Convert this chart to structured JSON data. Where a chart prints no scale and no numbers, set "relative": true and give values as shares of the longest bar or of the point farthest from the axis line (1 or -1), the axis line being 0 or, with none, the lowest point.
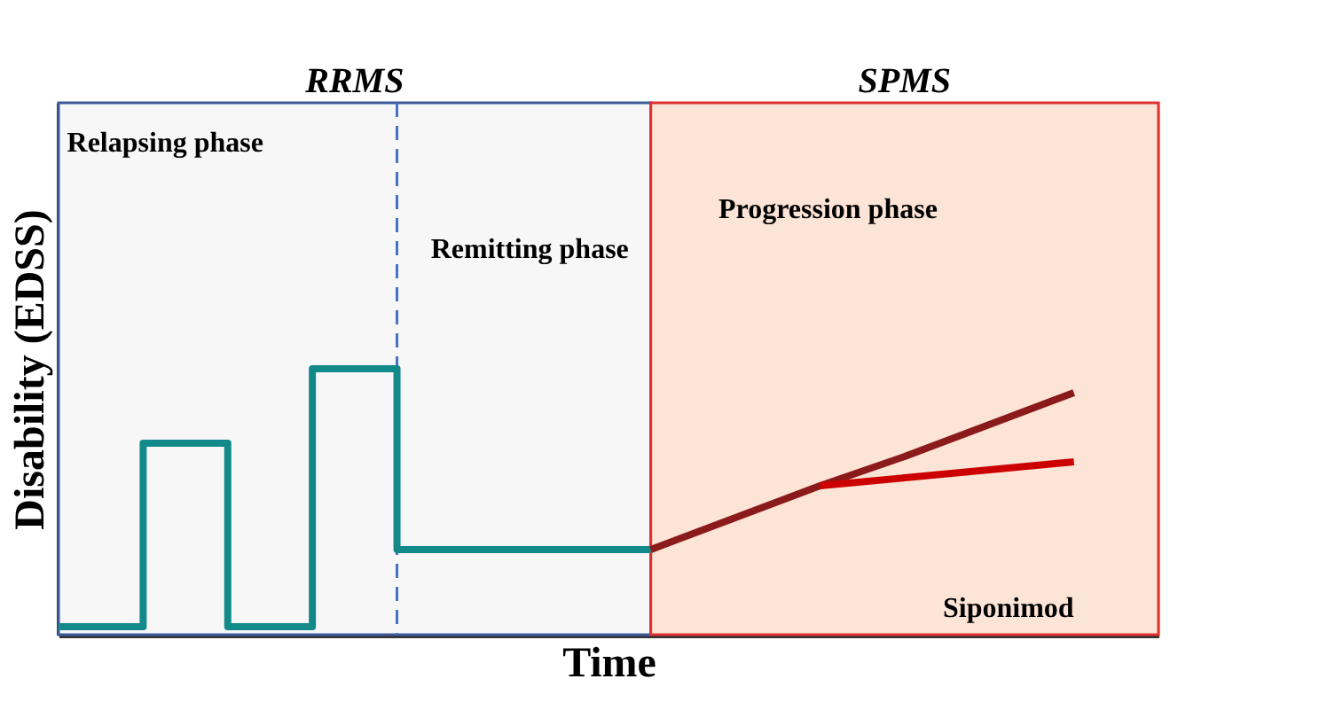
{
  "chart_data": {
    "type": "line",
    "relative": true,
    "xlabel": "Time",
    "ylabel": "Disability (EDSS)",
    "tick_labels": false,
    "categories": [
      null,
      null,
      null,
      null,
      null,
      null,
      null,
      null,
      null,
      null,
      null,
      null,
      null,
      null
    ],
    "series": [
      {
        "type": "step",
        "color": "#138a8a",
        "values": [
          0.03,
          0.72,
          0.03,
          1.0,
          0.32,
          0.32,
          0.32,
          0.32,
          null,
          null,
          null,
          null,
          null,
          null
        ]
      },
      {
        "color": "#8b1a1a",
        "values": [
          null,
          null,
          null,
          null,
          null,
          null,
          null,
          0.32,
          0.44,
          0.56,
          0.67,
          0.79,
          0.91,
          null
        ]
      },
      {
        "color": "#cc0000",
        "values": [
          null,
          null,
          null,
          null,
          null,
          null,
          null,
          null,
          null,
          0.56,
          0.59,
          0.62,
          0.65,
          null
        ]
      }
    ],
    "annotations": [
      "RRMS",
      "SPMS",
      "Relapsing phase",
      "Remitting phase",
      "Progression phase",
      "Siponimod"
    ]
  }
}
